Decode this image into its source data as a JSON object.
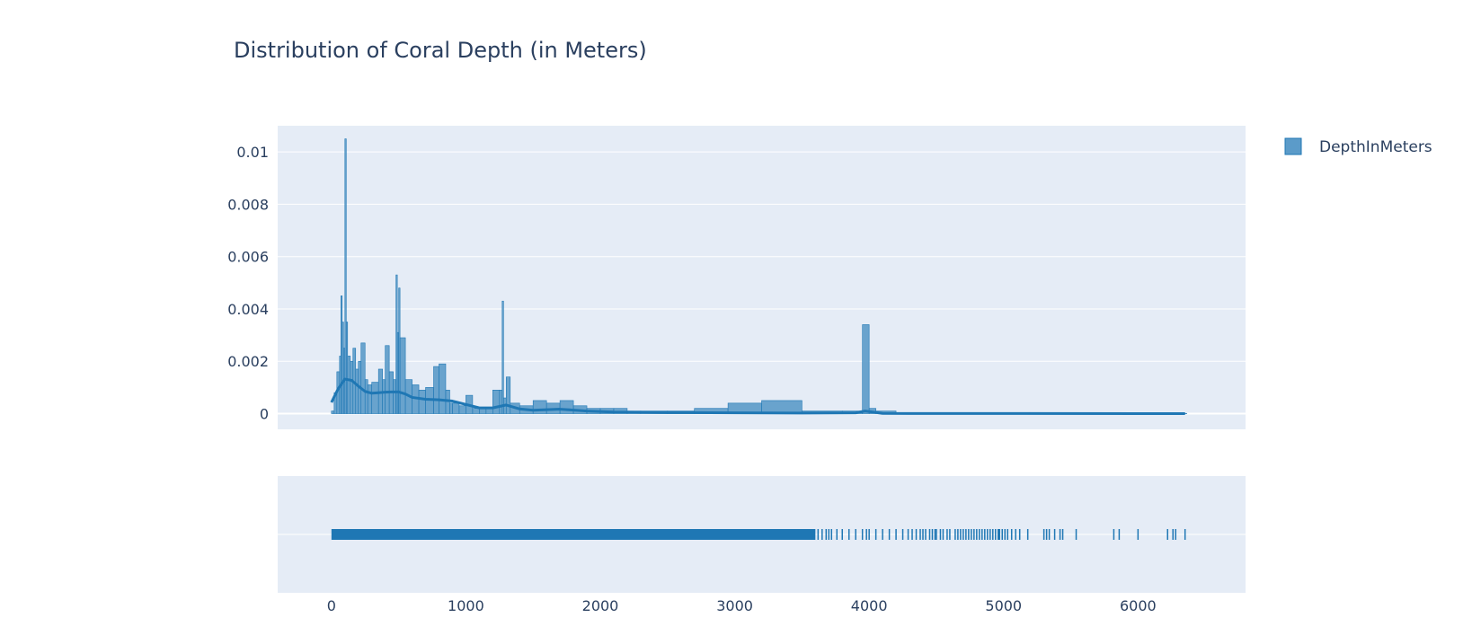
{
  "chart_data": {
    "type": "histogram",
    "title": "Distribution of Coral Depth (in Meters)",
    "legend": {
      "position": "top-right",
      "entries": [
        {
          "name": "DepthInMeters",
          "color": "#1f77b4"
        }
      ]
    },
    "colors": {
      "plot_bg": "#e5ecf6",
      "series": "#1f77b4",
      "bar_fill": "#5b9bc9",
      "text": "#2a3f5f",
      "grid": "#ffffff"
    },
    "x_axis": {
      "range": [
        -400,
        6800
      ],
      "tick_values": [
        0,
        1000,
        2000,
        3000,
        4000,
        5000,
        6000
      ],
      "tick_labels": [
        "0",
        "1000",
        "2000",
        "3000",
        "4000",
        "5000",
        "6000"
      ]
    },
    "y_axis": {
      "range": [
        -0.0006,
        0.011
      ],
      "tick_values": [
        0,
        0.002,
        0.004,
        0.006,
        0.008,
        0.01
      ],
      "tick_labels": [
        "0",
        "0.002",
        "0.004",
        "0.006",
        "0.008",
        "0.01"
      ],
      "grid": true
    },
    "series": [
      {
        "name": "DepthInMeters",
        "histogram_density": {
          "x": [
            0,
            20,
            40,
            60,
            70,
            80,
            90,
            100,
            110,
            120,
            140,
            160,
            180,
            200,
            220,
            250,
            270,
            300,
            350,
            380,
            400,
            430,
            460,
            480,
            490,
            500,
            510,
            550,
            600,
            650,
            700,
            760,
            800,
            850,
            880,
            900,
            950,
            1000,
            1050,
            1100,
            1150,
            1200,
            1250,
            1270,
            1280,
            1300,
            1330,
            1400,
            1500,
            1600,
            1700,
            1800,
            1900,
            2000,
            2100,
            2200,
            2300,
            2500,
            2700,
            2950,
            3200,
            3500,
            3800,
            3950,
            4000,
            4050,
            4200,
            4500,
            5000,
            5500,
            6000,
            6350
          ],
          "y": [
            0.0001,
            0.0008,
            0.0016,
            0.0022,
            0.0045,
            0.0035,
            0.0025,
            0.0105,
            0.0035,
            0.0022,
            0.002,
            0.0025,
            0.0017,
            0.002,
            0.0027,
            0.0013,
            0.0011,
            0.0012,
            0.0017,
            0.0013,
            0.0026,
            0.0016,
            0.0013,
            0.0053,
            0.0031,
            0.0048,
            0.0029,
            0.0013,
            0.0011,
            0.0009,
            0.001,
            0.0018,
            0.0019,
            0.0009,
            0.0004,
            0.0004,
            0.0003,
            0.0007,
            0.0002,
            0.0002,
            0.0002,
            0.0009,
            0.0009,
            0.0043,
            0.0006,
            0.0014,
            0.0004,
            0.0003,
            0.0005,
            0.0004,
            0.0005,
            0.0003,
            0.0002,
            0.0002,
            0.0002,
            0.0001,
            0.0001,
            0.0001,
            0.0002,
            0.0004,
            0.0005,
            0.0001,
            0.0001,
            0.0034,
            0.0002,
            0.0001,
            3e-05,
            2e-05,
            2e-05,
            1e-05,
            1e-05,
            1e-05
          ]
        },
        "kde": {
          "x": [
            0,
            50,
            100,
            150,
            200,
            250,
            300,
            350,
            400,
            450,
            500,
            550,
            600,
            700,
            800,
            900,
            1000,
            1100,
            1200,
            1300,
            1400,
            1500,
            1700,
            1900,
            2100,
            2500,
            3000,
            3500,
            3900,
            3970,
            4100,
            4300,
            5000,
            6000,
            6350
          ],
          "y": [
            0.00043,
            0.00095,
            0.00132,
            0.00127,
            0.00105,
            0.00085,
            0.00078,
            0.0008,
            0.00082,
            0.00083,
            0.00083,
            0.00075,
            0.00062,
            0.00055,
            0.00053,
            0.00048,
            0.00035,
            0.00022,
            0.00022,
            0.00033,
            0.00018,
            0.00013,
            0.00017,
            0.0001,
            6e-05,
            4e-05,
            3e-05,
            2e-05,
            3e-05,
            0.0001,
            1e-05,
            5e-06,
            3e-06,
            2e-06,
            2e-06
          ]
        },
        "rug_dense_range": [
          0,
          3600
        ],
        "rug_x": [
          3620,
          3650,
          3680,
          3700,
          3720,
          3760,
          3800,
          3850,
          3900,
          3950,
          3980,
          4000,
          4050,
          4100,
          4150,
          4200,
          4250,
          4290,
          4320,
          4350,
          4380,
          4400,
          4420,
          4450,
          4470,
          4490,
          4500,
          4530,
          4550,
          4580,
          4600,
          4640,
          4660,
          4680,
          4700,
          4720,
          4740,
          4760,
          4780,
          4800,
          4820,
          4840,
          4860,
          4880,
          4900,
          4920,
          4940,
          4960,
          4970,
          4990,
          5010,
          5030,
          5060,
          5090,
          5120,
          5180,
          5300,
          5320,
          5340,
          5380,
          5420,
          5440,
          5540,
          5820,
          5860,
          6000,
          6220,
          6260,
          6280,
          6350
        ]
      }
    ]
  }
}
